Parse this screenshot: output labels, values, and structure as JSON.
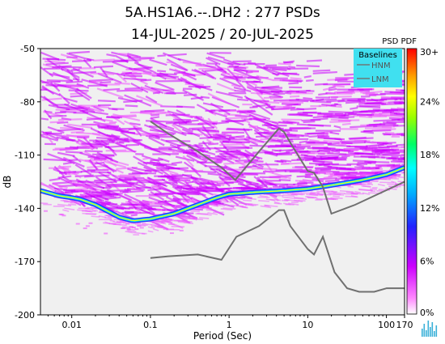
{
  "title_line1": "5A.HS1A6.--.DH2 : 277 PSDs",
  "title_line2": "14-JUL-2025 / 20-JUL-2025",
  "colors": {
    "pdf_main": "#cc00ff",
    "pdf_light": "#ee55ff",
    "mode_curve_low": "#3333ff",
    "mode_curve_mid": "#00e0ff",
    "mode_curve_high": "#ffff00",
    "baseline_model": "#707070",
    "plot_background": "#f0f0f0",
    "legend_background": "#40e0f0"
  },
  "chart_data": {
    "type": "heatmap",
    "xlabel": "Period (Sec)",
    "ylabel": "dB",
    "x_scale": "log",
    "xlim": [
      0.004,
      170
    ],
    "ylim": [
      -200,
      -50
    ],
    "x_ticks": [
      "0.01",
      "0.1",
      "1",
      "10",
      "100",
      "170"
    ],
    "x_tick_values": [
      0.01,
      0.1,
      1,
      10,
      100,
      170
    ],
    "y_ticks": [
      "-50",
      "-80",
      "-110",
      "-140",
      "-170",
      "-200"
    ],
    "y_tick_values": [
      -50,
      -80,
      -110,
      -140,
      -170,
      -200
    ],
    "colorbar": {
      "title": "PSD PDF",
      "ticks": [
        "30+",
        "24%",
        "18%",
        "12%",
        "6%",
        "0%"
      ],
      "tick_values": [
        30,
        24,
        18,
        12,
        6,
        0
      ]
    },
    "legend": {
      "title": "Baselines",
      "entries": [
        "HNM",
        "LNM"
      ],
      "position": "top-right"
    },
    "series": [
      {
        "name": "HNM",
        "x": [
          0.1,
          0.17,
          0.4,
          0.8,
          1.2,
          2.4,
          4.3,
          5,
          6,
          10,
          12,
          15.6,
          20,
          40,
          170
        ],
        "y": [
          -91,
          -98,
          -108,
          -117,
          -124,
          -108,
          -95,
          -97,
          -103,
          -119,
          -120,
          -128,
          -143,
          -138,
          -125
        ]
      },
      {
        "name": "LNM",
        "x": [
          0.1,
          0.17,
          0.4,
          0.8,
          1.24,
          2.4,
          4.3,
          5,
          6,
          10,
          12,
          15.6,
          21.9,
          31.6,
          45,
          70,
          101,
          154,
          170
        ],
        "y": [
          -168,
          -167,
          -166,
          -169,
          -156,
          -150,
          -141,
          -141,
          -150,
          -163,
          -166,
          -156,
          -176,
          -185,
          -187,
          -187,
          -185,
          -185,
          -185
        ]
      },
      {
        "name": "mode",
        "x": [
          0.004,
          0.007,
          0.01,
          0.013,
          0.02,
          0.04,
          0.06,
          0.1,
          0.2,
          0.4,
          0.7,
          1,
          2,
          5,
          10,
          20,
          50,
          100,
          170
        ],
        "y": [
          -130,
          -133,
          -134,
          -135,
          -138,
          -145,
          -147,
          -146,
          -143,
          -138,
          -134,
          -132,
          -131,
          -130,
          -129,
          -127,
          -124,
          -121,
          -117
        ]
      }
    ]
  },
  "logo": "spectrogram-logo"
}
